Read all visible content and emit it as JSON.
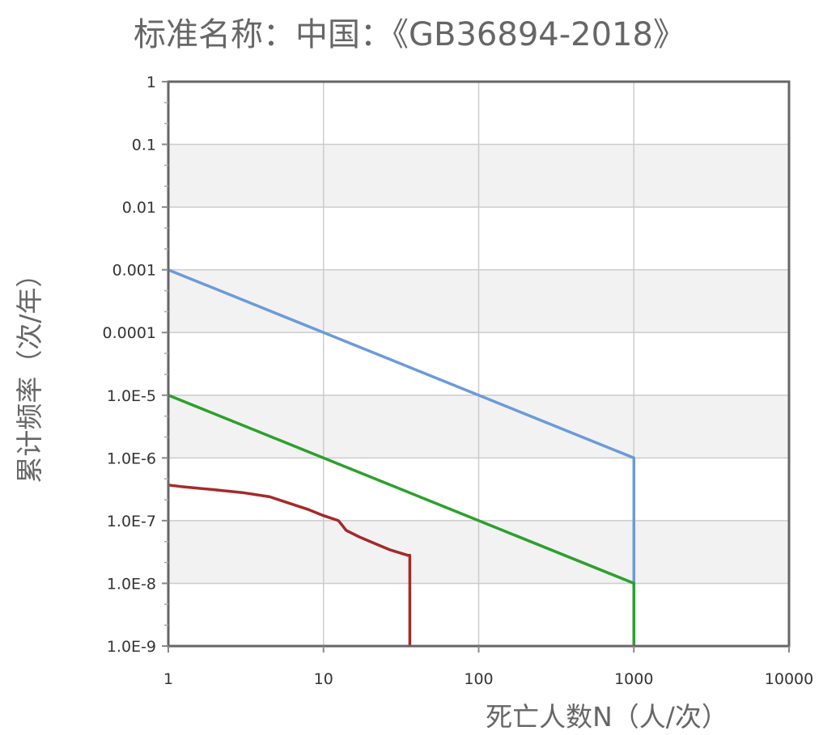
{
  "chart_data": {
    "type": "line",
    "title": "标准名称：中国：《GB36894-2018》",
    "xlabel": "死亡人数N（人/次）",
    "ylabel": "累计频率（次/年）",
    "x_scale": "log",
    "y_scale": "log",
    "xlim": [
      1,
      10000
    ],
    "ylim": [
      1e-09,
      1
    ],
    "grid": true,
    "x_ticks": [
      1,
      10,
      100,
      1000,
      10000
    ],
    "x_tick_labels": [
      "1",
      "10",
      "100",
      "1000",
      "10000"
    ],
    "y_ticks": [
      1,
      0.1,
      0.01,
      0.001,
      0.0001,
      1e-05,
      1e-06,
      1e-07,
      1e-08,
      1e-09
    ],
    "y_tick_labels": [
      "1",
      "0.1",
      "0.01",
      "0.001",
      "0.0001",
      "1.0E-5",
      "1.0E-6",
      "1.0E-7",
      "1.0E-8",
      "1.0E-9"
    ],
    "series": [
      {
        "color": "#6b9bd9",
        "points": [
          [
            1,
            0.001
          ],
          [
            1000,
            1e-06
          ],
          [
            1000,
            1e-09
          ]
        ]
      },
      {
        "color": "#2ca02c",
        "points": [
          [
            1,
            1e-05
          ],
          [
            1000,
            1e-08
          ],
          [
            1000,
            1e-09
          ]
        ]
      },
      {
        "color": "#a52a2a",
        "points": [
          [
            1,
            3.7e-07
          ],
          [
            1.2,
            3.5e-07
          ],
          [
            2,
            3.1e-07
          ],
          [
            3,
            2.8e-07
          ],
          [
            4.5,
            2.4e-07
          ],
          [
            6,
            1.9e-07
          ],
          [
            8,
            1.5e-07
          ],
          [
            10,
            1.2e-07
          ],
          [
            12.5,
            1e-07
          ],
          [
            14,
            7e-08
          ],
          [
            17,
            5.5e-08
          ],
          [
            22,
            4.2e-08
          ],
          [
            27,
            3.4e-08
          ],
          [
            35,
            2.8e-08
          ],
          [
            36,
            2.8e-08
          ],
          [
            36,
            1e-09
          ]
        ]
      }
    ]
  }
}
